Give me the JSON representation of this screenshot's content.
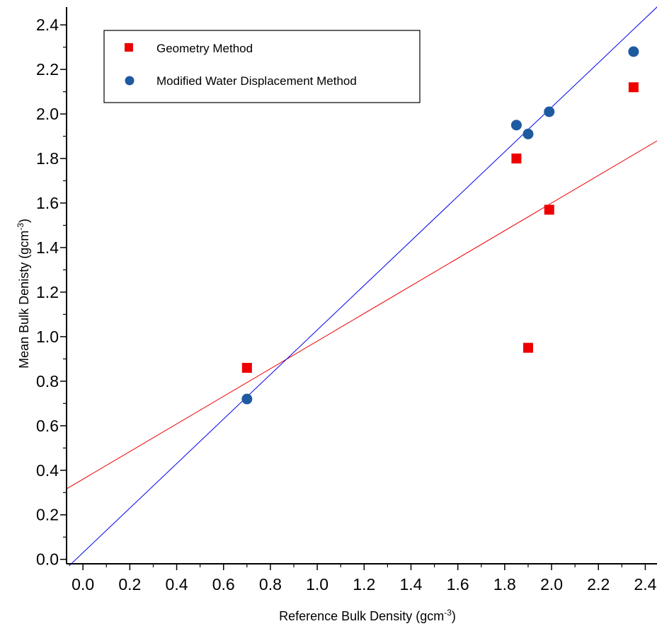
{
  "chart_data": {
    "type": "scatter",
    "xlabel": "Reference Bulk Density (gcm",
    "xlabel_sup": "-3",
    "xlabel_end": ")",
    "ylabel": "Mean Bulk Denisty (gcm",
    "ylabel_sup": "-3",
    "ylabel_end": ")",
    "xlim": [
      -0.07,
      2.45
    ],
    "ylim": [
      -0.02,
      2.48
    ],
    "xticks": [
      "0.0",
      "0.2",
      "0.4",
      "0.6",
      "0.8",
      "1.0",
      "1.2",
      "1.4",
      "1.6",
      "1.8",
      "2.0",
      "2.2",
      "2.4"
    ],
    "yticks": [
      "0.0",
      "0.2",
      "0.4",
      "0.6",
      "0.8",
      "1.0",
      "1.2",
      "1.4",
      "1.6",
      "1.8",
      "2.0",
      "2.2",
      "2.4"
    ],
    "legend_position": "top-left",
    "grid": false,
    "series": [
      {
        "name": "Geometry Method",
        "marker": "square",
        "color": "#ee0000",
        "points": [
          [
            0.7,
            0.86
          ],
          [
            1.85,
            1.8
          ],
          [
            1.9,
            0.95
          ],
          [
            1.99,
            1.57
          ],
          [
            2.35,
            2.12
          ]
        ],
        "fit": {
          "slope": 0.62,
          "intercept": 0.36,
          "color": "#ee0000"
        }
      },
      {
        "name": "Modified Water Displacement Method",
        "marker": "circle",
        "color": "#1e5aa0",
        "points": [
          [
            0.7,
            0.72
          ],
          [
            1.85,
            1.95
          ],
          [
            1.9,
            1.91
          ],
          [
            1.99,
            2.01
          ],
          [
            2.35,
            2.28
          ]
        ],
        "fit": {
          "slope": 1.0,
          "intercept": 0.03,
          "color": "#0000ee"
        }
      }
    ]
  }
}
